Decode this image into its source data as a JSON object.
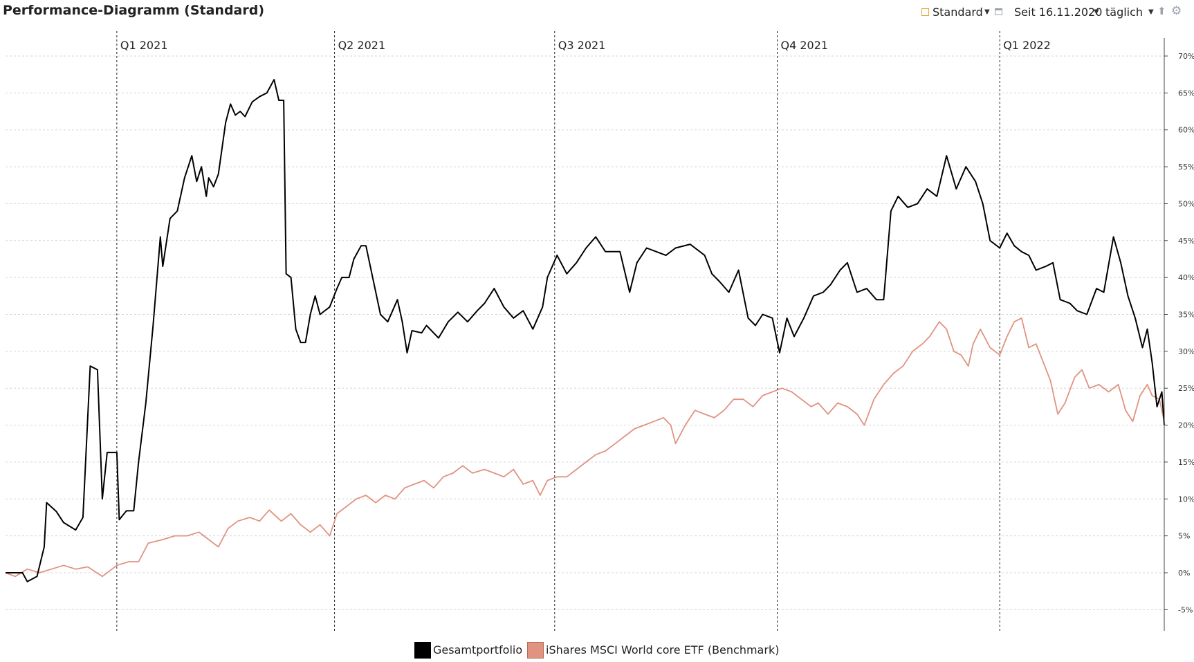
{
  "header": {
    "title": "Performance-Diagramm (Standard)",
    "view_label": "Standard",
    "since_label": "Seit 16.11.2020",
    "interval_label": "täglich",
    "icons": [
      "calendar-icon",
      "window-icon",
      "upload-icon",
      "gear-icon"
    ]
  },
  "chart_data": {
    "type": "line",
    "title": "Performance-Diagramm (Standard)",
    "x_start": "2020-11-16",
    "x_end": "2022-03-10",
    "quarter_markers": [
      {
        "label": "Q1 2021",
        "date": "2021-01-01"
      },
      {
        "label": "Q2 2021",
        "date": "2021-04-01"
      },
      {
        "label": "Q3 2021",
        "date": "2021-07-01"
      },
      {
        "label": "Q4 2021",
        "date": "2021-10-01"
      },
      {
        "label": "Q1 2022",
        "date": "2022-01-01"
      }
    ],
    "ylim": [
      -8,
      72
    ],
    "y_ticks": [
      -5,
      0,
      5,
      10,
      15,
      20,
      25,
      30,
      35,
      40,
      45,
      50,
      55,
      60,
      65,
      70
    ],
    "y_tick_suffix": "%",
    "y_axis_side": "right",
    "grid": "horizontal-dashed",
    "legend_position": "bottom-center",
    "series": [
      {
        "name": "Gesamtportfolio",
        "color": "#000000",
        "points": [
          [
            "2020-11-16",
            0
          ],
          [
            "2020-11-23",
            0
          ],
          [
            "2020-11-25",
            -1.2
          ],
          [
            "2020-11-29",
            -0.5
          ],
          [
            "2020-12-02",
            3.5
          ],
          [
            "2020-12-03",
            9.5
          ],
          [
            "2020-12-07",
            8.3
          ],
          [
            "2020-12-10",
            6.8
          ],
          [
            "2020-12-15",
            5.8
          ],
          [
            "2020-12-18",
            7.5
          ],
          [
            "2020-12-21",
            28
          ],
          [
            "2020-12-24",
            27.5
          ],
          [
            "2020-12-26",
            10
          ],
          [
            "2020-12-28",
            16.3
          ],
          [
            "2021-01-01",
            16.3
          ],
          [
            "2021-01-02",
            7.2
          ],
          [
            "2021-01-05",
            8.4
          ],
          [
            "2021-01-08",
            8.4
          ],
          [
            "2021-01-10",
            15
          ],
          [
            "2021-01-13",
            23
          ],
          [
            "2021-01-16",
            33.5
          ],
          [
            "2021-01-19",
            45.5
          ],
          [
            "2021-01-20",
            41.5
          ],
          [
            "2021-01-23",
            48
          ],
          [
            "2021-01-26",
            49
          ],
          [
            "2021-01-29",
            53.5
          ],
          [
            "2021-02-01",
            56.5
          ],
          [
            "2021-02-03",
            53
          ],
          [
            "2021-02-05",
            55
          ],
          [
            "2021-02-07",
            51
          ],
          [
            "2021-02-08",
            53.5
          ],
          [
            "2021-02-10",
            52.3
          ],
          [
            "2021-02-12",
            54
          ],
          [
            "2021-02-15",
            61
          ],
          [
            "2021-02-17",
            63.5
          ],
          [
            "2021-02-19",
            62
          ],
          [
            "2021-02-21",
            62.5
          ],
          [
            "2021-02-23",
            61.8
          ],
          [
            "2021-02-26",
            63.8
          ],
          [
            "2021-03-01",
            64.5
          ],
          [
            "2021-03-04",
            65
          ],
          [
            "2021-03-07",
            66.8
          ],
          [
            "2021-03-09",
            64
          ],
          [
            "2021-03-11",
            64
          ],
          [
            "2021-03-12",
            40.5
          ],
          [
            "2021-03-14",
            40
          ],
          [
            "2021-03-16",
            33
          ],
          [
            "2021-03-18",
            31.2
          ],
          [
            "2021-03-20",
            31.2
          ],
          [
            "2021-03-22",
            35
          ],
          [
            "2021-03-24",
            37.5
          ],
          [
            "2021-03-26",
            35
          ],
          [
            "2021-03-30",
            36
          ],
          [
            "2021-04-02",
            38.5
          ],
          [
            "2021-04-04",
            40
          ],
          [
            "2021-04-07",
            40
          ],
          [
            "2021-04-09",
            42.5
          ],
          [
            "2021-04-12",
            44.3
          ],
          [
            "2021-04-14",
            44.3
          ],
          [
            "2021-04-20",
            35
          ],
          [
            "2021-04-23",
            34
          ],
          [
            "2021-04-27",
            37
          ],
          [
            "2021-04-29",
            34
          ],
          [
            "2021-05-01",
            29.8
          ],
          [
            "2021-05-03",
            32.8
          ],
          [
            "2021-05-07",
            32.5
          ],
          [
            "2021-05-09",
            33.5
          ],
          [
            "2021-05-14",
            31.8
          ],
          [
            "2021-05-18",
            34
          ],
          [
            "2021-05-22",
            35.3
          ],
          [
            "2021-05-26",
            34
          ],
          [
            "2021-05-30",
            35.5
          ],
          [
            "2021-06-02",
            36.5
          ],
          [
            "2021-06-06",
            38.5
          ],
          [
            "2021-06-10",
            36
          ],
          [
            "2021-06-14",
            34.5
          ],
          [
            "2021-06-18",
            35.5
          ],
          [
            "2021-06-22",
            33
          ],
          [
            "2021-06-26",
            36
          ],
          [
            "2021-06-28",
            40
          ],
          [
            "2021-07-02",
            43
          ],
          [
            "2021-07-06",
            40.5
          ],
          [
            "2021-07-10",
            42
          ],
          [
            "2021-07-14",
            44
          ],
          [
            "2021-07-18",
            45.5
          ],
          [
            "2021-07-22",
            43.5
          ],
          [
            "2021-07-28",
            43.5
          ],
          [
            "2021-08-01",
            38
          ],
          [
            "2021-08-04",
            42
          ],
          [
            "2021-08-08",
            44
          ],
          [
            "2021-08-12",
            43.5
          ],
          [
            "2021-08-16",
            43
          ],
          [
            "2021-08-20",
            44
          ],
          [
            "2021-08-26",
            44.5
          ],
          [
            "2021-09-01",
            43
          ],
          [
            "2021-09-04",
            40.5
          ],
          [
            "2021-09-07",
            39.5
          ],
          [
            "2021-09-11",
            38
          ],
          [
            "2021-09-15",
            41
          ],
          [
            "2021-09-19",
            34.5
          ],
          [
            "2021-09-22",
            33.5
          ],
          [
            "2021-09-25",
            35
          ],
          [
            "2021-09-29",
            34.5
          ],
          [
            "2021-10-02",
            29.8
          ],
          [
            "2021-10-05",
            34.5
          ],
          [
            "2021-10-08",
            32
          ],
          [
            "2021-10-12",
            34.5
          ],
          [
            "2021-10-16",
            37.5
          ],
          [
            "2021-10-20",
            38
          ],
          [
            "2021-10-23",
            39
          ],
          [
            "2021-10-27",
            41
          ],
          [
            "2021-10-30",
            42
          ],
          [
            "2021-11-03",
            38
          ],
          [
            "2021-11-07",
            38.5
          ],
          [
            "2021-11-11",
            37
          ],
          [
            "2021-11-14",
            37
          ],
          [
            "2021-11-17",
            49
          ],
          [
            "2021-11-20",
            51
          ],
          [
            "2021-11-24",
            49.5
          ],
          [
            "2021-11-28",
            50
          ],
          [
            "2021-12-02",
            52
          ],
          [
            "2021-12-06",
            51
          ],
          [
            "2021-12-10",
            56.5
          ],
          [
            "2021-12-14",
            52
          ],
          [
            "2021-12-18",
            55
          ],
          [
            "2021-12-22",
            53
          ],
          [
            "2021-12-25",
            50
          ],
          [
            "2021-12-28",
            45
          ],
          [
            "2022-01-01",
            44
          ],
          [
            "2022-01-04",
            46
          ],
          [
            "2022-01-07",
            44.3
          ],
          [
            "2022-01-10",
            43.5
          ],
          [
            "2022-01-13",
            43
          ],
          [
            "2022-01-16",
            41
          ],
          [
            "2022-01-20",
            41.5
          ],
          [
            "2022-01-23",
            42
          ],
          [
            "2022-01-26",
            37
          ],
          [
            "2022-01-30",
            36.5
          ],
          [
            "2022-02-02",
            35.5
          ],
          [
            "2022-02-06",
            35
          ],
          [
            "2022-02-10",
            38.5
          ],
          [
            "2022-02-13",
            38
          ],
          [
            "2022-02-17",
            45.5
          ],
          [
            "2022-02-20",
            42
          ],
          [
            "2022-02-23",
            37.5
          ],
          [
            "2022-02-26",
            34.5
          ],
          [
            "2022-03-01",
            30.5
          ],
          [
            "2022-03-03",
            33
          ],
          [
            "2022-03-05",
            28.5
          ],
          [
            "2022-03-07",
            22.5
          ],
          [
            "2022-03-09",
            24.5
          ],
          [
            "2022-03-10",
            20
          ]
        ]
      },
      {
        "name": "iShares MSCI World core ETF  (Benchmark)",
        "color": "#e09380",
        "points": [
          [
            "2020-11-16",
            0
          ],
          [
            "2020-11-20",
            -0.5
          ],
          [
            "2020-11-25",
            0.5
          ],
          [
            "2020-11-30",
            0
          ],
          [
            "2020-12-05",
            0.5
          ],
          [
            "2020-12-10",
            1
          ],
          [
            "2020-12-15",
            0.5
          ],
          [
            "2020-12-20",
            0.8
          ],
          [
            "2020-12-26",
            -0.5
          ],
          [
            "2021-01-01",
            1
          ],
          [
            "2021-01-06",
            1.5
          ],
          [
            "2021-01-10",
            1.5
          ],
          [
            "2021-01-14",
            4
          ],
          [
            "2021-01-20",
            4.5
          ],
          [
            "2021-01-25",
            5
          ],
          [
            "2021-01-30",
            5
          ],
          [
            "2021-02-04",
            5.5
          ],
          [
            "2021-02-08",
            4.5
          ],
          [
            "2021-02-12",
            3.5
          ],
          [
            "2021-02-16",
            6
          ],
          [
            "2021-02-20",
            7
          ],
          [
            "2021-02-25",
            7.5
          ],
          [
            "2021-03-01",
            7
          ],
          [
            "2021-03-05",
            8.5
          ],
          [
            "2021-03-10",
            7
          ],
          [
            "2021-03-14",
            8
          ],
          [
            "2021-03-18",
            6.5
          ],
          [
            "2021-03-22",
            5.5
          ],
          [
            "2021-03-26",
            6.5
          ],
          [
            "2021-03-30",
            5
          ],
          [
            "2021-04-02",
            8
          ],
          [
            "2021-04-06",
            9
          ],
          [
            "2021-04-10",
            10
          ],
          [
            "2021-04-14",
            10.5
          ],
          [
            "2021-04-18",
            9.5
          ],
          [
            "2021-04-22",
            10.5
          ],
          [
            "2021-04-26",
            10
          ],
          [
            "2021-04-30",
            11.5
          ],
          [
            "2021-05-04",
            12
          ],
          [
            "2021-05-08",
            12.5
          ],
          [
            "2021-05-12",
            11.5
          ],
          [
            "2021-05-16",
            13
          ],
          [
            "2021-05-20",
            13.5
          ],
          [
            "2021-05-24",
            14.5
          ],
          [
            "2021-05-28",
            13.5
          ],
          [
            "2021-06-02",
            14
          ],
          [
            "2021-06-06",
            13.5
          ],
          [
            "2021-06-10",
            13
          ],
          [
            "2021-06-14",
            14
          ],
          [
            "2021-06-18",
            12
          ],
          [
            "2021-06-22",
            12.5
          ],
          [
            "2021-06-25",
            10.5
          ],
          [
            "2021-06-28",
            12.5
          ],
          [
            "2021-07-02",
            13
          ],
          [
            "2021-07-06",
            13
          ],
          [
            "2021-07-10",
            14
          ],
          [
            "2021-07-14",
            15
          ],
          [
            "2021-07-18",
            16
          ],
          [
            "2021-07-22",
            16.5
          ],
          [
            "2021-07-26",
            17.5
          ],
          [
            "2021-07-30",
            18.5
          ],
          [
            "2021-08-03",
            19.5
          ],
          [
            "2021-08-07",
            20
          ],
          [
            "2021-08-11",
            20.5
          ],
          [
            "2021-08-15",
            21
          ],
          [
            "2021-08-18",
            20
          ],
          [
            "2021-08-20",
            17.5
          ],
          [
            "2021-08-24",
            20
          ],
          [
            "2021-08-28",
            22
          ],
          [
            "2021-09-01",
            21.5
          ],
          [
            "2021-09-05",
            21
          ],
          [
            "2021-09-09",
            22
          ],
          [
            "2021-09-13",
            23.5
          ],
          [
            "2021-09-17",
            23.5
          ],
          [
            "2021-09-21",
            22.5
          ],
          [
            "2021-09-25",
            24
          ],
          [
            "2021-09-29",
            24.5
          ],
          [
            "2021-10-03",
            25
          ],
          [
            "2021-10-07",
            24.5
          ],
          [
            "2021-10-11",
            23.5
          ],
          [
            "2021-10-15",
            22.5
          ],
          [
            "2021-10-18",
            23
          ],
          [
            "2021-10-22",
            21.5
          ],
          [
            "2021-10-26",
            23
          ],
          [
            "2021-10-30",
            22.5
          ],
          [
            "2021-11-03",
            21.5
          ],
          [
            "2021-11-06",
            20
          ],
          [
            "2021-11-10",
            23.5
          ],
          [
            "2021-11-14",
            25.5
          ],
          [
            "2021-11-18",
            27
          ],
          [
            "2021-11-22",
            28
          ],
          [
            "2021-11-26",
            30
          ],
          [
            "2021-11-30",
            31
          ],
          [
            "2021-12-03",
            32
          ],
          [
            "2021-12-07",
            34
          ],
          [
            "2021-12-10",
            33
          ],
          [
            "2021-12-13",
            30
          ],
          [
            "2021-12-16",
            29.5
          ],
          [
            "2021-12-19",
            28
          ],
          [
            "2021-12-21",
            31
          ],
          [
            "2021-12-24",
            33
          ],
          [
            "2021-12-28",
            30.5
          ],
          [
            "2022-01-01",
            29.5
          ],
          [
            "2022-01-04",
            32
          ],
          [
            "2022-01-07",
            34
          ],
          [
            "2022-01-10",
            34.5
          ],
          [
            "2022-01-13",
            30.5
          ],
          [
            "2022-01-16",
            31
          ],
          [
            "2022-01-19",
            28.5
          ],
          [
            "2022-01-22",
            26
          ],
          [
            "2022-01-25",
            21.5
          ],
          [
            "2022-01-28",
            23
          ],
          [
            "2022-02-01",
            26.5
          ],
          [
            "2022-02-04",
            27.5
          ],
          [
            "2022-02-07",
            25
          ],
          [
            "2022-02-11",
            25.5
          ],
          [
            "2022-02-15",
            24.5
          ],
          [
            "2022-02-19",
            25.5
          ],
          [
            "2022-02-22",
            22
          ],
          [
            "2022-02-25",
            20.5
          ],
          [
            "2022-02-28",
            24
          ],
          [
            "2022-03-03",
            25.5
          ],
          [
            "2022-03-05",
            24
          ],
          [
            "2022-03-08",
            23.5
          ],
          [
            "2022-03-10",
            20.5
          ]
        ]
      }
    ]
  }
}
